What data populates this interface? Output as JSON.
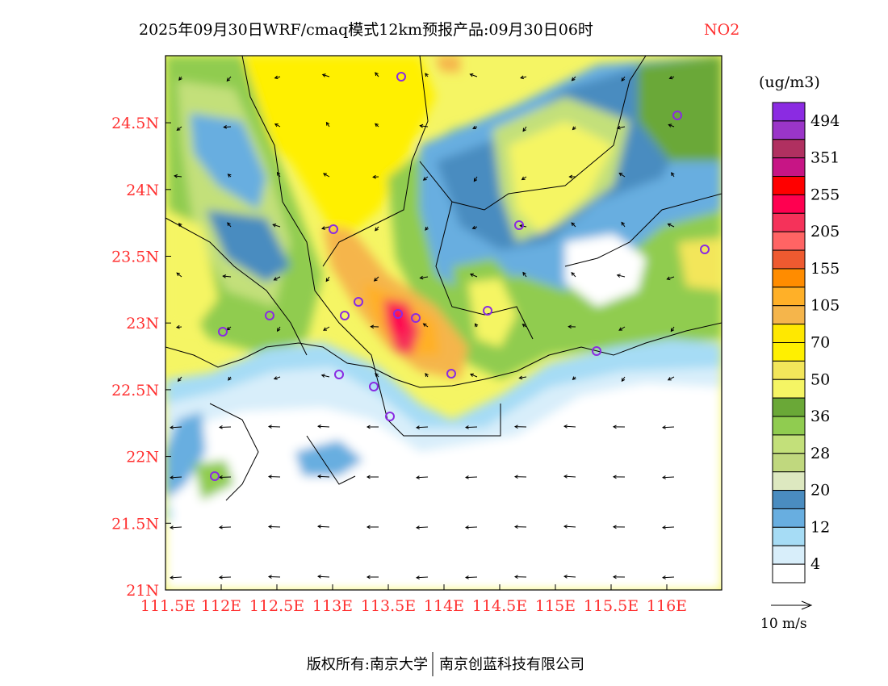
{
  "title": {
    "main": "2025年09月30日WRF/cmaq模式12km预报产品:09月30日06时",
    "species": "NO2",
    "species_color": "#ff3030"
  },
  "axes": {
    "x_ticks": [
      "111.5E",
      "112E",
      "112.5E",
      "113E",
      "113.5E",
      "114E",
      "114.5E",
      "115E",
      "115.5E",
      "116E"
    ],
    "y_ticks": [
      "21N",
      "21.5N",
      "22N",
      "22.5N",
      "23N",
      "23.5N",
      "24N",
      "24.5N"
    ],
    "tick_color": "#ff3030"
  },
  "colorbar": {
    "unit": "(ug/m3)",
    "colors": [
      "#8b2be2",
      "#9a35c8",
      "#b03060",
      "#c71585",
      "#ff0000",
      "#ff0050",
      "#f5325a",
      "#ff6464",
      "#ee5a30",
      "#ff8c00",
      "#ffb028",
      "#f5b54b",
      "#ffe800",
      "#fff000",
      "#f3e65a",
      "#f5f564",
      "#6aa837",
      "#90cc50",
      "#c3e07a",
      "#c0d87e",
      "#dde8c0",
      "#4a8cc0",
      "#68aee0",
      "#a6dcf5",
      "#d8eefa",
      "#ffffff"
    ],
    "labels": [
      "494",
      "351",
      "255",
      "205",
      "155",
      "105",
      "70",
      "50",
      "36",
      "28",
      "20",
      "12",
      "4"
    ]
  },
  "wind_legend": {
    "label": "10 m/s"
  },
  "footer": {
    "left": "版权所有:南京大学",
    "right": "南京创蓝科技有限公司"
  }
}
